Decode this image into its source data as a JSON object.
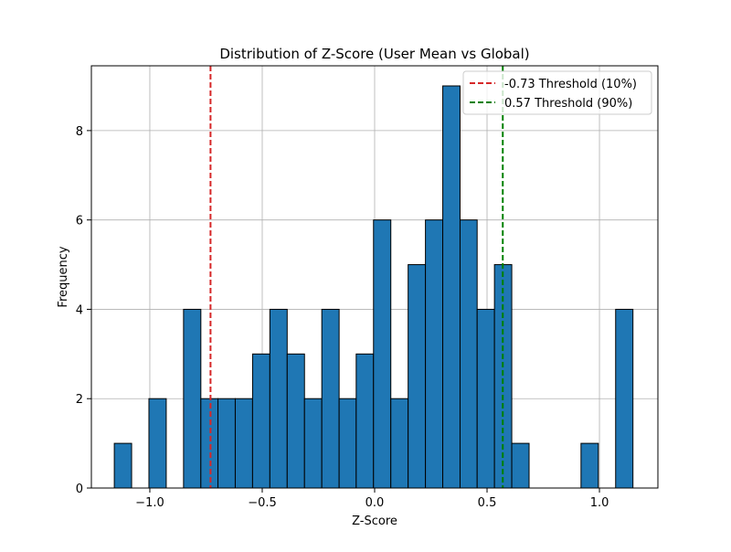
{
  "chart_data": {
    "type": "bar",
    "title": "Distribution of Z-Score (User Mean vs Global)",
    "xlabel": "Z-Score",
    "ylabel": "Frequency",
    "xlim": [
      -1.26,
      1.26
    ],
    "ylim": [
      0,
      9.45
    ],
    "grid": true,
    "legend_position": "top-right",
    "bar_color": "#1f77b4",
    "bar_edge_color": "#000000",
    "bins": [
      {
        "x0": -1.158,
        "x1": -1.081,
        "count": 1
      },
      {
        "x0": -1.081,
        "x1": -1.004,
        "count": 0
      },
      {
        "x0": -1.004,
        "x1": -0.927,
        "count": 2
      },
      {
        "x0": -0.927,
        "x1": -0.85,
        "count": 0
      },
      {
        "x0": -0.85,
        "x1": -0.773,
        "count": 4
      },
      {
        "x0": -0.773,
        "x1": -0.697,
        "count": 2
      },
      {
        "x0": -0.697,
        "x1": -0.62,
        "count": 2
      },
      {
        "x0": -0.62,
        "x1": -0.543,
        "count": 2
      },
      {
        "x0": -0.543,
        "x1": -0.466,
        "count": 3
      },
      {
        "x0": -0.466,
        "x1": -0.389,
        "count": 4
      },
      {
        "x0": -0.389,
        "x1": -0.312,
        "count": 3
      },
      {
        "x0": -0.312,
        "x1": -0.235,
        "count": 2
      },
      {
        "x0": -0.235,
        "x1": -0.158,
        "count": 4
      },
      {
        "x0": -0.158,
        "x1": -0.082,
        "count": 2
      },
      {
        "x0": -0.082,
        "x1": -0.005,
        "count": 3
      },
      {
        "x0": -0.005,
        "x1": 0.072,
        "count": 6
      },
      {
        "x0": 0.072,
        "x1": 0.149,
        "count": 2
      },
      {
        "x0": 0.149,
        "x1": 0.226,
        "count": 5
      },
      {
        "x0": 0.226,
        "x1": 0.303,
        "count": 6
      },
      {
        "x0": 0.303,
        "x1": 0.38,
        "count": 9
      },
      {
        "x0": 0.38,
        "x1": 0.456,
        "count": 6
      },
      {
        "x0": 0.456,
        "x1": 0.533,
        "count": 4
      },
      {
        "x0": 0.533,
        "x1": 0.61,
        "count": 5
      },
      {
        "x0": 0.61,
        "x1": 0.687,
        "count": 1
      },
      {
        "x0": 0.687,
        "x1": 0.764,
        "count": 0
      },
      {
        "x0": 0.764,
        "x1": 0.841,
        "count": 0
      },
      {
        "x0": 0.841,
        "x1": 0.918,
        "count": 0
      },
      {
        "x0": 0.918,
        "x1": 0.995,
        "count": 1
      },
      {
        "x0": 0.995,
        "x1": 1.072,
        "count": 0
      },
      {
        "x0": 1.072,
        "x1": 1.149,
        "count": 4
      }
    ],
    "x_ticks": [
      {
        "value": -1.0,
        "label": "−1.0"
      },
      {
        "value": -0.5,
        "label": "−0.5"
      },
      {
        "value": 0.0,
        "label": "0.0"
      },
      {
        "value": 0.5,
        "label": "0.5"
      },
      {
        "value": 1.0,
        "label": "1.0"
      }
    ],
    "y_ticks": [
      {
        "value": 0,
        "label": "0"
      },
      {
        "value": 2,
        "label": "2"
      },
      {
        "value": 4,
        "label": "4"
      },
      {
        "value": 6,
        "label": "6"
      },
      {
        "value": 8,
        "label": "8"
      }
    ],
    "thresholds": [
      {
        "name": "-0.73 Threshold (10%)",
        "value": -0.73,
        "color": "#d62728"
      },
      {
        "name": "0.57 Threshold (90%)",
        "value": 0.57,
        "color": "#008000"
      }
    ]
  }
}
